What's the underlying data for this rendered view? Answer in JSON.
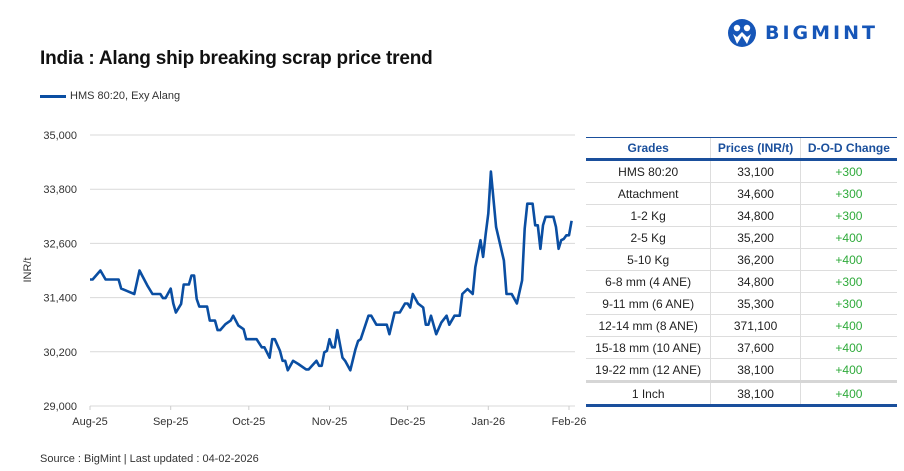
{
  "brand": {
    "name": "BIGMINT",
    "color": "#1656b8"
  },
  "source": "Source : BigMint | Last updated : 04-02-2026",
  "chart_data": {
    "type": "line",
    "title": "India : Alang ship breaking scrap price trend",
    "ylabel": "INR/t",
    "xlabel": "",
    "ylim": [
      29000,
      35000
    ],
    "yticks": [
      "29,000",
      "30,200",
      "31,400",
      "32,600",
      "33,800",
      "35,000"
    ],
    "ytick_values": [
      29000,
      30200,
      31400,
      32600,
      33800,
      35000
    ],
    "xticks": [
      "Aug-25",
      "Sep-25",
      "Oct-25",
      "Nov-25",
      "Dec-25",
      "Jan-26",
      "Feb-26"
    ],
    "xtick_dates": [
      "2025-08-01",
      "2025-09-01",
      "2025-10-01",
      "2025-11-01",
      "2025-12-01",
      "2026-01-01",
      "2026-02-01"
    ],
    "grid": "horizontal",
    "legend": "top-left",
    "series": [
      {
        "name": "HMS 80:20, Exy Alang",
        "color": "#0a4ea2",
        "x": [
          "2025-08-01",
          "2025-08-02",
          "2025-08-05",
          "2025-08-07",
          "2025-08-12",
          "2025-08-13",
          "2025-08-18",
          "2025-08-20",
          "2025-08-21",
          "2025-08-23",
          "2025-08-25",
          "2025-08-28",
          "2025-08-29",
          "2025-08-30",
          "2025-09-01",
          "2025-09-02",
          "2025-09-03",
          "2025-09-05",
          "2025-09-06",
          "2025-09-08",
          "2025-09-09",
          "2025-09-10",
          "2025-09-11",
          "2025-09-12",
          "2025-09-15",
          "2025-09-16",
          "2025-09-18",
          "2025-09-19",
          "2025-09-20",
          "2025-09-22",
          "2025-09-24",
          "2025-09-25",
          "2025-09-27",
          "2025-09-29",
          "2025-09-30",
          "2025-10-04",
          "2025-10-06",
          "2025-10-07",
          "2025-10-09",
          "2025-10-10",
          "2025-10-11",
          "2025-10-13",
          "2025-10-14",
          "2025-10-15",
          "2025-10-16",
          "2025-10-18",
          "2025-10-20",
          "2025-10-23",
          "2025-10-24",
          "2025-10-27",
          "2025-10-28",
          "2025-10-29",
          "2025-10-30",
          "2025-10-31",
          "2025-11-01",
          "2025-11-02",
          "2025-11-03",
          "2025-11-04",
          "2025-11-06",
          "2025-11-07",
          "2025-11-09",
          "2025-11-11",
          "2025-11-12",
          "2025-11-13",
          "2025-11-16",
          "2025-11-17",
          "2025-11-19",
          "2025-11-23",
          "2025-11-24",
          "2025-11-26",
          "2025-11-28",
          "2025-11-30",
          "2025-12-01",
          "2025-12-02",
          "2025-12-03",
          "2025-12-05",
          "2025-12-07",
          "2025-12-08",
          "2025-12-09",
          "2025-12-10",
          "2025-12-12",
          "2025-12-14",
          "2025-12-16",
          "2025-12-17",
          "2025-12-19",
          "2025-12-21",
          "2025-12-22",
          "2025-12-24",
          "2025-12-26",
          "2025-12-27",
          "2025-12-29",
          "2025-12-30",
          "2025-12-31",
          "2026-01-01",
          "2026-01-02",
          "2026-01-04",
          "2026-01-07",
          "2026-01-08",
          "2026-01-10",
          "2026-01-12",
          "2026-01-14",
          "2026-01-15",
          "2026-01-16",
          "2026-01-18",
          "2026-01-19",
          "2026-01-20",
          "2026-01-21",
          "2026-01-22",
          "2026-01-23",
          "2026-01-26",
          "2026-01-27",
          "2026-01-28",
          "2026-01-29",
          "2026-01-30",
          "2026-01-31",
          "2026-02-01",
          "2026-02-02"
        ],
        "y": [
          31800,
          31800,
          32000,
          31800,
          31800,
          31600,
          31480,
          32000,
          31890,
          31670,
          31480,
          31480,
          31390,
          31390,
          31600,
          31270,
          31070,
          31260,
          31690,
          31690,
          31890,
          31890,
          31370,
          31200,
          31200,
          30890,
          30890,
          30680,
          30680,
          30810,
          30890,
          31000,
          30780,
          30700,
          30480,
          30480,
          30300,
          30300,
          30070,
          30480,
          30480,
          30220,
          30000,
          30000,
          29790,
          30000,
          29930,
          29810,
          29810,
          30000,
          29890,
          29890,
          30190,
          30220,
          30480,
          30300,
          30300,
          30680,
          30070,
          30000,
          29790,
          30260,
          30440,
          30480,
          31000,
          31000,
          30800,
          30800,
          30590,
          31070,
          31070,
          31270,
          31270,
          31180,
          31480,
          31270,
          31180,
          30800,
          30800,
          31000,
          30590,
          30850,
          31000,
          30800,
          31000,
          31000,
          31480,
          31590,
          31480,
          32070,
          32670,
          32300,
          32810,
          33260,
          34190,
          32960,
          32220,
          31480,
          31480,
          31270,
          31780,
          32930,
          33480,
          33480,
          33000,
          33000,
          32480,
          33000,
          33190,
          33190,
          32960,
          32480,
          32670,
          32700,
          32780,
          32780,
          33100
        ]
      }
    ]
  },
  "table": {
    "headers": [
      "Grades",
      "Prices (INR/t)",
      "D-O-D Change"
    ],
    "rows": [
      [
        "HMS 80:20",
        "33,100",
        "+300"
      ],
      [
        "Attachment",
        "34,600",
        "+300"
      ],
      [
        "1-2 Kg",
        "34,800",
        "+300"
      ],
      [
        "2-5 Kg",
        "35,200",
        "+400"
      ],
      [
        "5-10 Kg",
        "36,200",
        "+400"
      ],
      [
        "6-8 mm (4 ANE)",
        "34,800",
        "+300"
      ],
      [
        "9-11 mm (6 ANE)",
        "35,300",
        "+300"
      ],
      [
        "12-14 mm (8 ANE)",
        "371,100",
        "+400"
      ],
      [
        "15-18 mm (10 ANE)",
        "37,600",
        "+400"
      ],
      [
        "19-22 mm (12 ANE)",
        "38,100",
        "+400"
      ],
      [
        "1 Inch",
        "38,100",
        "+400"
      ]
    ],
    "header_color": "#1a4f9c",
    "change_color": "#2eaa3a"
  }
}
